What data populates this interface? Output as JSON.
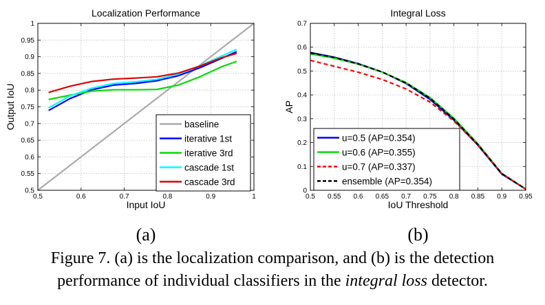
{
  "chart_data": [
    {
      "type": "line",
      "title": "Localization Performance",
      "xlabel": "Input IoU",
      "ylabel": "Output IoU",
      "xlim": [
        0.5,
        1
      ],
      "ylim": [
        0.5,
        1
      ],
      "xticks": [
        "0.5",
        "0.6",
        "0.7",
        "0.8",
        "0.9",
        "1"
      ],
      "yticks": [
        "0.5",
        "0.55",
        "0.6",
        "0.65",
        "0.7",
        "0.75",
        "0.8",
        "0.85",
        "0.9",
        "0.95",
        "1"
      ],
      "grid": true,
      "legend_position": "bottom-right",
      "series": [
        {
          "name": "baseline",
          "color": "#aaaaaa",
          "dash": "solid",
          "x": [
            0.5,
            1.0
          ],
          "y": [
            0.5,
            1.0
          ]
        },
        {
          "name": "iterative 1st",
          "color": "#0000ff",
          "dash": "solid",
          "x": [
            0.525,
            0.575,
            0.625,
            0.675,
            0.725,
            0.775,
            0.825,
            0.875,
            0.925,
            0.96
          ],
          "y": [
            0.739,
            0.775,
            0.801,
            0.815,
            0.82,
            0.828,
            0.843,
            0.867,
            0.895,
            0.915
          ]
        },
        {
          "name": "iterative 3rd",
          "color": "#00dd00",
          "dash": "solid",
          "x": [
            0.525,
            0.575,
            0.625,
            0.675,
            0.725,
            0.775,
            0.825,
            0.875,
            0.925,
            0.96
          ],
          "y": [
            0.772,
            0.785,
            0.797,
            0.801,
            0.801,
            0.802,
            0.815,
            0.84,
            0.87,
            0.886
          ]
        },
        {
          "name": "cascade 1st",
          "color": "#00ffff",
          "dash": "solid",
          "x": [
            0.525,
            0.575,
            0.625,
            0.675,
            0.725,
            0.775,
            0.825,
            0.875,
            0.925,
            0.96
          ],
          "y": [
            0.747,
            0.783,
            0.806,
            0.82,
            0.825,
            0.832,
            0.848,
            0.873,
            0.902,
            0.922
          ]
        },
        {
          "name": "cascade 3rd",
          "color": "#dd0000",
          "dash": "solid",
          "x": [
            0.525,
            0.575,
            0.625,
            0.675,
            0.725,
            0.775,
            0.825,
            0.875,
            0.925,
            0.96
          ],
          "y": [
            0.793,
            0.812,
            0.826,
            0.833,
            0.836,
            0.84,
            0.851,
            0.872,
            0.897,
            0.91
          ]
        }
      ],
      "subfigure_label": "(a)"
    },
    {
      "type": "line",
      "title": "Integral Loss",
      "xlabel": "IoU Threshold",
      "ylabel": "AP",
      "xlim": [
        0.5,
        0.95
      ],
      "ylim": [
        0,
        0.7
      ],
      "xticks": [
        "0.5",
        "0.55",
        "0.6",
        "0.65",
        "0.7",
        "0.75",
        "0.8",
        "0.85",
        "0.9",
        "0.95"
      ],
      "yticks": [
        "0",
        "0.1",
        "0.2",
        "0.3",
        "0.4",
        "0.5",
        "0.6",
        "0.7"
      ],
      "grid": true,
      "legend_position": "bottom-left",
      "series": [
        {
          "name": "u=0.5 (AP=0.354)",
          "color": "#0000ff",
          "dash": "solid",
          "x": [
            0.5,
            0.55,
            0.6,
            0.65,
            0.7,
            0.75,
            0.8,
            0.85,
            0.9,
            0.95
          ],
          "y": [
            0.578,
            0.558,
            0.531,
            0.496,
            0.448,
            0.381,
            0.294,
            0.189,
            0.068,
            0.005
          ]
        },
        {
          "name": "u=0.6 (AP=0.355)",
          "color": "#00dd00",
          "dash": "solid",
          "x": [
            0.5,
            0.55,
            0.6,
            0.65,
            0.7,
            0.75,
            0.8,
            0.85,
            0.9,
            0.95
          ],
          "y": [
            0.572,
            0.554,
            0.529,
            0.496,
            0.451,
            0.389,
            0.302,
            0.195,
            0.071,
            0.005
          ]
        },
        {
          "name": "u=0.7 (AP=0.337)",
          "color": "#ff0000",
          "dash": "dashed",
          "x": [
            0.5,
            0.55,
            0.6,
            0.65,
            0.7,
            0.75,
            0.8,
            0.85,
            0.9,
            0.95
          ],
          "y": [
            0.545,
            0.52,
            0.495,
            0.465,
            0.425,
            0.37,
            0.29,
            0.19,
            0.07,
            0.005
          ]
        },
        {
          "name": "ensemble (AP=0.354)",
          "color": "#000000",
          "dash": "dashed",
          "x": [
            0.5,
            0.55,
            0.6,
            0.65,
            0.7,
            0.75,
            0.8,
            0.85,
            0.9,
            0.95
          ],
          "y": [
            0.576,
            0.557,
            0.53,
            0.496,
            0.45,
            0.386,
            0.298,
            0.192,
            0.07,
            0.005
          ]
        }
      ],
      "subfigure_label": "(b)"
    }
  ],
  "caption": {
    "line1": "Figure 7. (a) is the localization comparison, and (b) is the detection",
    "line2_before": "performance of individual classifiers in the ",
    "line2_italic": "integral loss",
    "line2_after": " detector."
  }
}
